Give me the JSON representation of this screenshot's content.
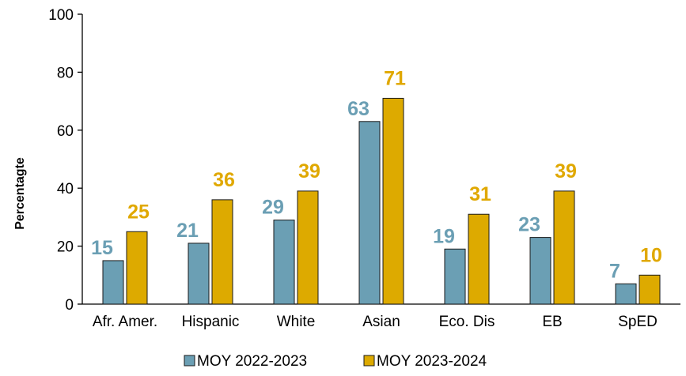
{
  "chart_data": {
    "type": "bar",
    "title": "",
    "xlabel": "",
    "ylabel": "Percentagte",
    "ylim": [
      0,
      100
    ],
    "yticks": [
      0,
      20,
      40,
      60,
      80,
      100
    ],
    "grid": false,
    "legend_position": "bottom",
    "categories": [
      "Afr. Amer.",
      "Hispanic",
      "White",
      "Asian",
      "Eco. Dis",
      "EB",
      "SpED"
    ],
    "series": [
      {
        "name": "MOY 2022-2023",
        "values": [
          15,
          21,
          29,
          63,
          19,
          23,
          7
        ],
        "color": "#6b9fb4",
        "label_color": "#6b9fb4"
      },
      {
        "name": "MOY 2023-2024",
        "values": [
          25,
          36,
          39,
          71,
          31,
          39,
          10
        ],
        "color": "#ddaa00",
        "label_color": "#e0a800"
      }
    ]
  }
}
